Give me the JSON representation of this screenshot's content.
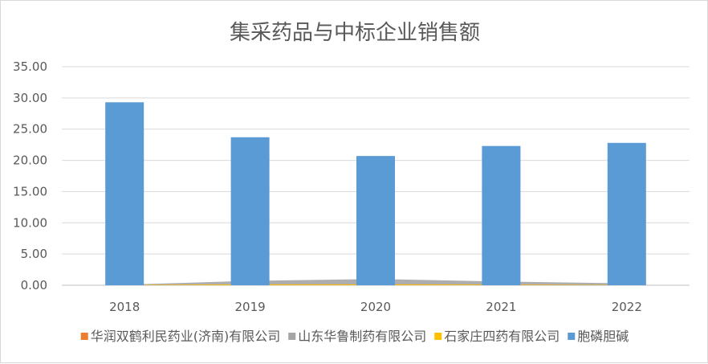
{
  "chart_data": {
    "type": "bar",
    "title": "集采药品与中标企业销售额",
    "categories": [
      "2018",
      "2019",
      "2020",
      "2021",
      "2022"
    ],
    "ylim": [
      0,
      35
    ],
    "yticks": [
      "0.00",
      "5.00",
      "10.00",
      "15.00",
      "20.00",
      "25.00",
      "30.00",
      "35.00"
    ],
    "grid": true,
    "legend_position": "bottom",
    "series": [
      {
        "name": "华润双鹤利民药业(济南)有限公司",
        "type": "area",
        "color": "#ED7D31",
        "values": [
          0.05,
          0.15,
          0.2,
          0.15,
          0.1
        ]
      },
      {
        "name": "山东华鲁制药有限公司",
        "type": "area",
        "color": "#A5A5A5",
        "values": [
          0.1,
          0.7,
          1.0,
          0.6,
          0.3
        ]
      },
      {
        "name": "石家庄四药有限公司",
        "type": "area",
        "color": "#FFC000",
        "values": [
          0.05,
          0.15,
          0.15,
          0.1,
          0.05
        ]
      },
      {
        "name": "胞磷胆碱",
        "type": "bar",
        "color": "#5B9BD5",
        "values": [
          29.3,
          23.7,
          20.7,
          22.3,
          22.8
        ]
      }
    ]
  }
}
